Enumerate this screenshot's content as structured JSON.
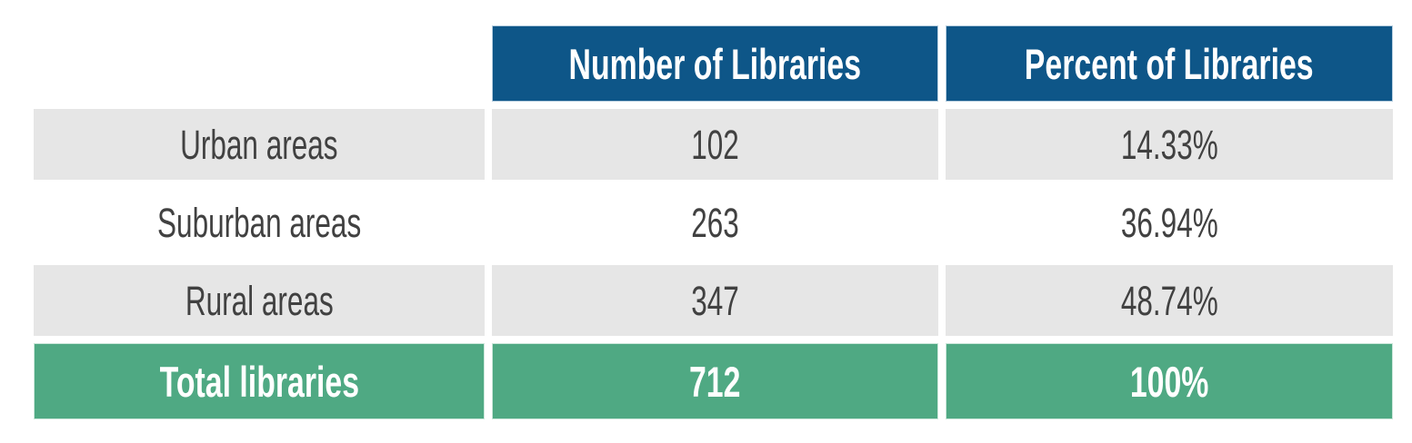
{
  "table": {
    "columns": [
      "",
      "Number of Libraries",
      "Percent of Libraries"
    ],
    "rows": [
      {
        "label": "Urban areas",
        "number": "102",
        "percent": "14.33%"
      },
      {
        "label": "Suburban areas",
        "number": "263",
        "percent": "36.94%"
      },
      {
        "label": "Rural areas",
        "number": "347",
        "percent": "48.74%"
      }
    ],
    "total_row": {
      "label": "Total libraries",
      "number": "712",
      "percent": "100%"
    }
  },
  "colors": {
    "header_bg": "#0E5688",
    "header_text": "#FFFFFF",
    "total_bg": "#4FA983",
    "total_text": "#FFFFFF",
    "alt_row_bg": "#E6E6E6",
    "plain_row_bg": "#FFFFFF",
    "body_text": "#414141"
  },
  "chart_data": {
    "type": "table",
    "columns": [
      "",
      "Number of Libraries",
      "Percent of Libraries"
    ],
    "rows": [
      [
        "Urban areas",
        102,
        "14.33%"
      ],
      [
        "Suburban areas",
        263,
        "36.94%"
      ],
      [
        "Rural areas",
        347,
        "48.74%"
      ],
      [
        "Total libraries",
        712,
        "100%"
      ]
    ]
  }
}
